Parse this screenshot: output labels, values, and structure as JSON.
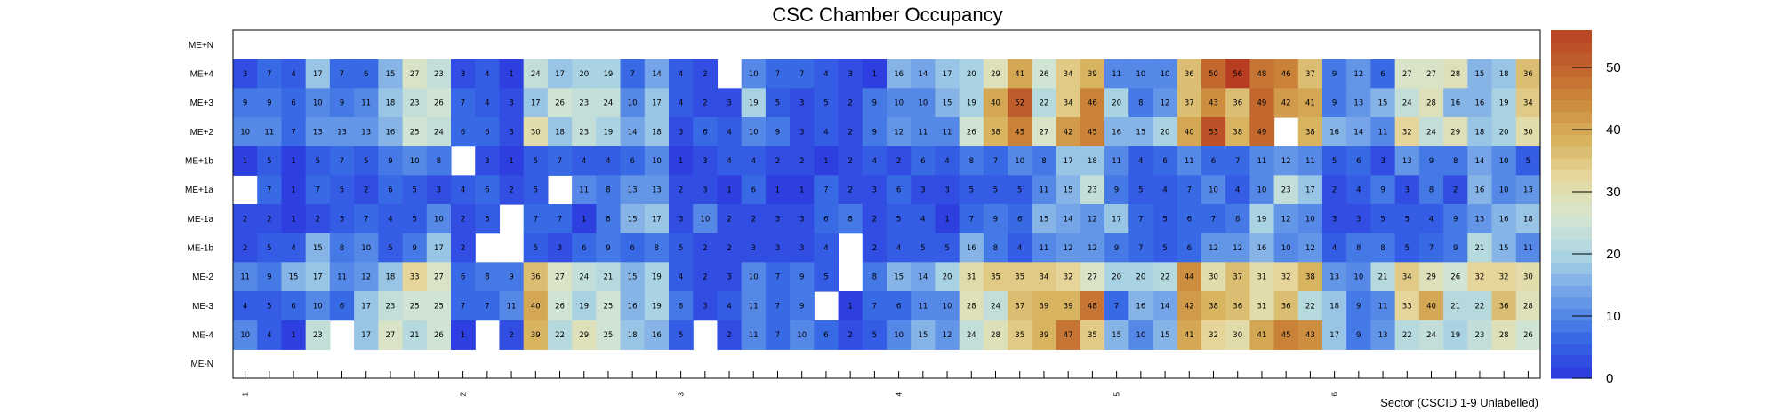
{
  "chart_data": {
    "type": "heatmap",
    "title": "CSC Chamber Occupancy",
    "xlabel": "Sector (CSCID 1-9 Unlabelled)",
    "x_tick_labels": [
      "1",
      "2",
      "3",
      "4",
      "5",
      "6"
    ],
    "columns_per_sector": 9,
    "y_labels": [
      "ME+N",
      "ME+4",
      "ME+3",
      "ME+2",
      "ME+1b",
      "ME+1a",
      "ME-1a",
      "ME-1b",
      "ME-2",
      "ME-3",
      "ME-4",
      "ME-N"
    ],
    "z_range": [
      0,
      56
    ],
    "z_ticks": [
      0,
      10,
      20,
      30,
      40,
      50
    ],
    "color_stops": [
      "#2e3fe0",
      "#3a6fe6",
      "#6fa0e8",
      "#a9d3e3",
      "#d4e6d2",
      "#e6d9a0",
      "#d8b360",
      "#cc8a3c",
      "#c0602c",
      "#b83c22"
    ],
    "values": [
      [
        null,
        null,
        null,
        null,
        null,
        null,
        null,
        null,
        null,
        null,
        null,
        null,
        null,
        null,
        null,
        null,
        null,
        null,
        null,
        null,
        null,
        null,
        null,
        null,
        null,
        null,
        null,
        null,
        null,
        null,
        null,
        null,
        null,
        null,
        null,
        null,
        null,
        null,
        null,
        null,
        null,
        null,
        null,
        null,
        null,
        null,
        null,
        null,
        null,
        null,
        null,
        null,
        null,
        null
      ],
      [
        3,
        7,
        4,
        17,
        7,
        6,
        15,
        27,
        23,
        3,
        4,
        1,
        24,
        17,
        20,
        19,
        7,
        14,
        4,
        2,
        null,
        10,
        7,
        7,
        4,
        3,
        1,
        16,
        14,
        17,
        20,
        29,
        41,
        26,
        34,
        39,
        11,
        10,
        10,
        36,
        50,
        56,
        48,
        46,
        37,
        9,
        12,
        6,
        27,
        27,
        28,
        15,
        18,
        36
      ],
      [
        9,
        9,
        6,
        10,
        9,
        11,
        18,
        23,
        26,
        7,
        4,
        3,
        17,
        26,
        23,
        24,
        10,
        17,
        4,
        2,
        3,
        19,
        5,
        3,
        5,
        2,
        9,
        10,
        10,
        15,
        19,
        40,
        52,
        22,
        34,
        46,
        20,
        8,
        12,
        37,
        43,
        36,
        49,
        42,
        41,
        9,
        13,
        15,
        24,
        28,
        16,
        16,
        19,
        34
      ],
      [
        10,
        11,
        7,
        13,
        13,
        13,
        16,
        25,
        24,
        6,
        6,
        3,
        30,
        18,
        23,
        19,
        14,
        18,
        3,
        6,
        4,
        10,
        9,
        3,
        4,
        2,
        9,
        12,
        11,
        11,
        26,
        38,
        45,
        27,
        42,
        45,
        16,
        15,
        20,
        40,
        53,
        38,
        49,
        null,
        38,
        16,
        14,
        11,
        32,
        24,
        29,
        18,
        20,
        30
      ],
      [
        1,
        5,
        1,
        5,
        7,
        5,
        9,
        10,
        8,
        null,
        3,
        1,
        5,
        7,
        4,
        4,
        6,
        10,
        1,
        3,
        4,
        4,
        2,
        2,
        1,
        2,
        4,
        2,
        6,
        4,
        8,
        7,
        10,
        8,
        17,
        18,
        11,
        4,
        6,
        11,
        6,
        7,
        11,
        12,
        11,
        5,
        6,
        3,
        13,
        9,
        8,
        14,
        10,
        5
      ],
      [
        null,
        7,
        1,
        7,
        5,
        2,
        6,
        5,
        3,
        4,
        6,
        2,
        5,
        null,
        11,
        8,
        13,
        13,
        2,
        3,
        1,
        6,
        1,
        1,
        7,
        2,
        3,
        6,
        3,
        3,
        5,
        5,
        5,
        11,
        15,
        23,
        9,
        5,
        4,
        7,
        10,
        4,
        10,
        23,
        17,
        2,
        4,
        9,
        3,
        8,
        2,
        16,
        10,
        13
      ],
      [
        2,
        2,
        1,
        2,
        5,
        7,
        4,
        5,
        10,
        2,
        5,
        null,
        7,
        7,
        1,
        8,
        15,
        17,
        3,
        10,
        2,
        2,
        3,
        3,
        6,
        8,
        2,
        5,
        4,
        1,
        7,
        9,
        6,
        15,
        14,
        12,
        17,
        7,
        5,
        6,
        7,
        8,
        19,
        12,
        10,
        3,
        3,
        5,
        5,
        4,
        9,
        13,
        16,
        18
      ],
      [
        2,
        5,
        4,
        15,
        8,
        10,
        5,
        9,
        17,
        2,
        null,
        null,
        5,
        3,
        6,
        9,
        6,
        8,
        5,
        2,
        2,
        3,
        3,
        3,
        4,
        null,
        2,
        4,
        5,
        5,
        16,
        8,
        4,
        11,
        12,
        12,
        9,
        7,
        5,
        6,
        12,
        12,
        16,
        10,
        12,
        4,
        8,
        8,
        5,
        7,
        9,
        21,
        15,
        11
      ],
      [
        11,
        9,
        15,
        17,
        11,
        12,
        18,
        33,
        27,
        6,
        8,
        9,
        36,
        27,
        24,
        21,
        15,
        19,
        4,
        2,
        3,
        10,
        7,
        9,
        5,
        null,
        8,
        15,
        14,
        20,
        31,
        35,
        35,
        34,
        32,
        27,
        20,
        20,
        22,
        44,
        30,
        37,
        31,
        32,
        38,
        13,
        10,
        21,
        34,
        29,
        26,
        32,
        32,
        30
      ],
      [
        4,
        5,
        6,
        10,
        6,
        17,
        23,
        25,
        25,
        7,
        7,
        11,
        40,
        26,
        19,
        25,
        16,
        19,
        8,
        3,
        4,
        11,
        7,
        9,
        null,
        1,
        7,
        6,
        11,
        10,
        28,
        24,
        37,
        39,
        39,
        48,
        7,
        16,
        14,
        42,
        38,
        36,
        31,
        36,
        22,
        18,
        9,
        11,
        33,
        40,
        21,
        22,
        36,
        28
      ],
      [
        10,
        4,
        1,
        23,
        null,
        17,
        27,
        21,
        26,
        1,
        null,
        2,
        39,
        22,
        29,
        25,
        18,
        16,
        5,
        null,
        2,
        11,
        7,
        10,
        6,
        2,
        5,
        10,
        15,
        12,
        24,
        28,
        35,
        39,
        47,
        35,
        15,
        10,
        15,
        41,
        32,
        30,
        41,
        45,
        43,
        17,
        9,
        13,
        22,
        24,
        19,
        23,
        28,
        26
      ],
      [
        null,
        null,
        null,
        null,
        null,
        null,
        null,
        null,
        null,
        null,
        null,
        null,
        null,
        null,
        null,
        null,
        null,
        null,
        null,
        null,
        null,
        null,
        null,
        null,
        null,
        null,
        null,
        null,
        null,
        null,
        null,
        null,
        null,
        null,
        null,
        null,
        null,
        null,
        null,
        null,
        null,
        null,
        null,
        null,
        null,
        null,
        null,
        null,
        null,
        null,
        null,
        null,
        null,
        null
      ]
    ]
  }
}
